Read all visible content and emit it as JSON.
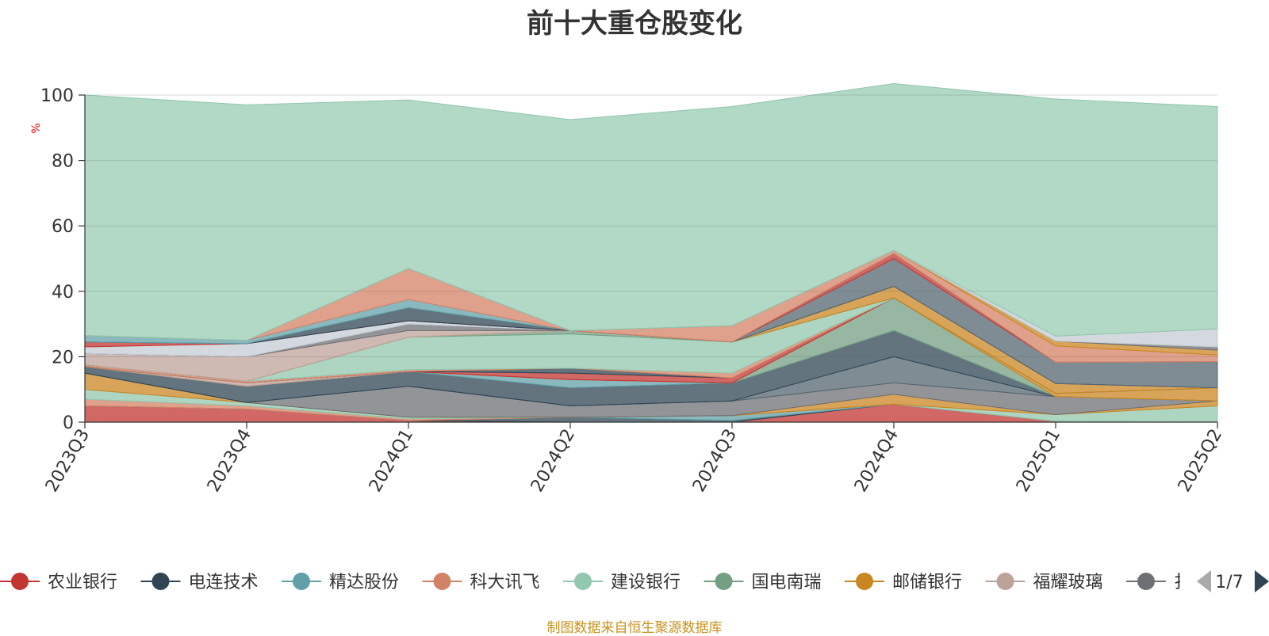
{
  "chart_data": {
    "type": "area",
    "title": "前十大重仓股变化",
    "ylabel": "%",
    "ylim": [
      0,
      100
    ],
    "yticks": [
      0,
      20,
      40,
      60,
      80,
      100
    ],
    "grid": true,
    "legend_position": "bottom",
    "categories": [
      "2023Q3",
      "2023Q4",
      "2024Q1",
      "2024Q2",
      "2024Q3",
      "2024Q4",
      "2025Q1",
      "2025Q2"
    ],
    "series": [
      {
        "name": "农业银行",
        "color": "#c23531",
        "values": [
          5,
          4,
          0.5,
          0,
          0,
          5.5,
          0.3,
          0
        ]
      },
      {
        "name": "电连技术",
        "color": "#2f4554",
        "values": [
          0,
          0,
          0,
          1.5,
          0.5,
          0,
          0,
          0
        ]
      },
      {
        "name": "精达股份",
        "color": "#61a0a8",
        "values": [
          0,
          0,
          0,
          0,
          1.5,
          0,
          0,
          0
        ]
      },
      {
        "name": "科大讯飞",
        "color": "#d48265",
        "values": [
          2,
          1,
          0.5,
          0,
          0,
          0,
          0,
          0
        ]
      },
      {
        "name": "建设银行",
        "color": "#91c7ae",
        "values": [
          3,
          1,
          0.5,
          0,
          0,
          0,
          2,
          5
        ]
      },
      {
        "name": "国电南瑞",
        "color": "#749f83",
        "values": [
          0,
          0,
          0,
          0,
          0,
          0,
          0,
          0
        ]
      },
      {
        "name": "邮储银行",
        "color": "#ca8622",
        "values": [
          5,
          0,
          0,
          0,
          0,
          3,
          0,
          1.5
        ]
      },
      {
        "name": "福耀玻璃",
        "color": "#bda29a",
        "values": [
          0,
          0,
          0,
          0,
          0,
          0,
          0,
          0
        ]
      },
      {
        "name": "",
        "color": "#6e7074",
        "values": [
          0,
          0,
          9.5,
          3.5,
          4.5,
          3.5,
          5.5,
          0
        ]
      },
      {
        "name": "",
        "color": "#546570",
        "values": [
          0,
          0,
          0,
          0,
          0,
          8,
          0,
          0
        ]
      },
      {
        "name": "",
        "color": "#c4ccd3",
        "values": [
          0,
          0,
          0,
          0,
          0,
          0,
          0,
          0
        ]
      },
      {
        "name": "",
        "color": "#c23531",
        "values": [
          0,
          0,
          0,
          0,
          0,
          0,
          0,
          0
        ]
      },
      {
        "name": "",
        "color": "#2f4554",
        "values": [
          2,
          5,
          4.5,
          5.5,
          5.5,
          8,
          0,
          0
        ]
      },
      {
        "name": "",
        "color": "#61a0a8",
        "values": [
          0,
          0,
          0,
          2.5,
          0,
          0,
          0,
          0
        ]
      },
      {
        "name": "",
        "color": "#d48265",
        "values": [
          0,
          0,
          0,
          0,
          0,
          0,
          0,
          0
        ]
      },
      {
        "name": "",
        "color": "#91c7ae",
        "values": [
          0,
          0,
          0,
          0,
          0,
          0,
          0,
          0
        ]
      },
      {
        "name": "",
        "color": "#749f83",
        "values": [
          0,
          0,
          0,
          0,
          0,
          10,
          0,
          0
        ]
      },
      {
        "name": "",
        "color": "#ca8622",
        "values": [
          0,
          0,
          0,
          0,
          0,
          0,
          1,
          4
        ]
      },
      {
        "name": "",
        "color": "#bda29a",
        "values": [
          0,
          1,
          0,
          0,
          0,
          0,
          0,
          0
        ]
      },
      {
        "name": "",
        "color": "#6e7074",
        "values": [
          0,
          0,
          0,
          0,
          0,
          0,
          0,
          0
        ]
      },
      {
        "name": "",
        "color": "#546570",
        "values": [
          0,
          0,
          0,
          0,
          0,
          0,
          0,
          0
        ]
      },
      {
        "name": "",
        "color": "#c4ccd3",
        "values": [
          0,
          0,
          0,
          0,
          0,
          0,
          0,
          0
        ]
      },
      {
        "name": "",
        "color": "#c23531",
        "values": [
          0,
          0,
          0,
          2,
          1.5,
          0,
          0,
          0
        ]
      },
      {
        "name": "",
        "color": "#2f4554",
        "values": [
          0,
          0,
          0,
          1.5,
          0,
          0,
          0,
          0
        ]
      },
      {
        "name": "",
        "color": "#61a0a8",
        "values": [
          0,
          0,
          0,
          0,
          0,
          0,
          0,
          0
        ]
      },
      {
        "name": "",
        "color": "#d48265",
        "values": [
          0.5,
          0.5,
          0.5,
          0,
          1.5,
          0,
          0,
          0
        ]
      },
      {
        "name": "",
        "color": "#91c7ae",
        "values": [
          0,
          0,
          10,
          10.5,
          9.5,
          0,
          0,
          0
        ]
      },
      {
        "name": "",
        "color": "#749f83",
        "values": [
          0,
          0,
          0,
          1,
          0,
          0,
          0,
          0
        ]
      },
      {
        "name": "",
        "color": "#ca8622",
        "values": [
          0,
          0,
          0,
          0,
          0,
          3.5,
          3,
          0
        ]
      },
      {
        "name": "",
        "color": "#bda29a",
        "values": [
          3.5,
          7.5,
          2,
          0,
          0,
          0,
          0,
          0
        ]
      },
      {
        "name": "",
        "color": "#6e7074",
        "values": [
          0,
          0,
          2,
          0,
          0,
          0,
          0,
          0
        ]
      },
      {
        "name": "",
        "color": "#546570",
        "values": [
          0,
          0,
          0,
          0,
          0,
          8.5,
          6.5,
          8
        ]
      },
      {
        "name": "",
        "color": "#c4ccd3",
        "values": [
          2,
          4,
          1,
          0,
          0,
          0,
          0,
          0
        ]
      },
      {
        "name": "",
        "color": "#c23531",
        "values": [
          1.5,
          0,
          0,
          0,
          0,
          1.5,
          0,
          0
        ]
      },
      {
        "name": "",
        "color": "#2f4554",
        "values": [
          0,
          0,
          4,
          0,
          0,
          0,
          0,
          0
        ]
      },
      {
        "name": "",
        "color": "#61a0a8",
        "values": [
          2,
          1,
          2.5,
          0,
          0,
          0,
          0,
          0
        ]
      },
      {
        "name": "",
        "color": "#d48265",
        "values": [
          0,
          0,
          9.5,
          0,
          5,
          1,
          5,
          2
        ]
      },
      {
        "name": "",
        "color": "#91c7ae",
        "values": [
          0,
          0,
          0,
          0,
          0,
          0,
          0,
          0
        ]
      },
      {
        "name": "",
        "color": "#749f83",
        "values": [
          0,
          0,
          0,
          0,
          0,
          0,
          0,
          0
        ]
      },
      {
        "name": "",
        "color": "#ca8622",
        "values": [
          0,
          0,
          0,
          0,
          0,
          0,
          1.5,
          1.5
        ]
      },
      {
        "name": "",
        "color": "#bda29a",
        "values": [
          0,
          0,
          0,
          0,
          0,
          0,
          0,
          0
        ]
      },
      {
        "name": "",
        "color": "#6e7074",
        "values": [
          0,
          0,
          0,
          0,
          0,
          0,
          0,
          1
        ]
      },
      {
        "name": "",
        "color": "#546570",
        "values": [
          0,
          0,
          0,
          0,
          0,
          0,
          0,
          0
        ]
      },
      {
        "name": "",
        "color": "#c4ccd3",
        "values": [
          0,
          0,
          0,
          0,
          0,
          0,
          1.5,
          5.5
        ]
      },
      {
        "name": "",
        "color": "#91c7ae",
        "values": [
          73.5,
          72,
          51.5,
          64.5,
          67,
          51,
          72.5,
          68
        ]
      }
    ]
  },
  "legend": {
    "page": "1/7",
    "partial_label": "扌"
  },
  "footer": {
    "source_note": "制图数据来自恒生聚源数据库"
  }
}
